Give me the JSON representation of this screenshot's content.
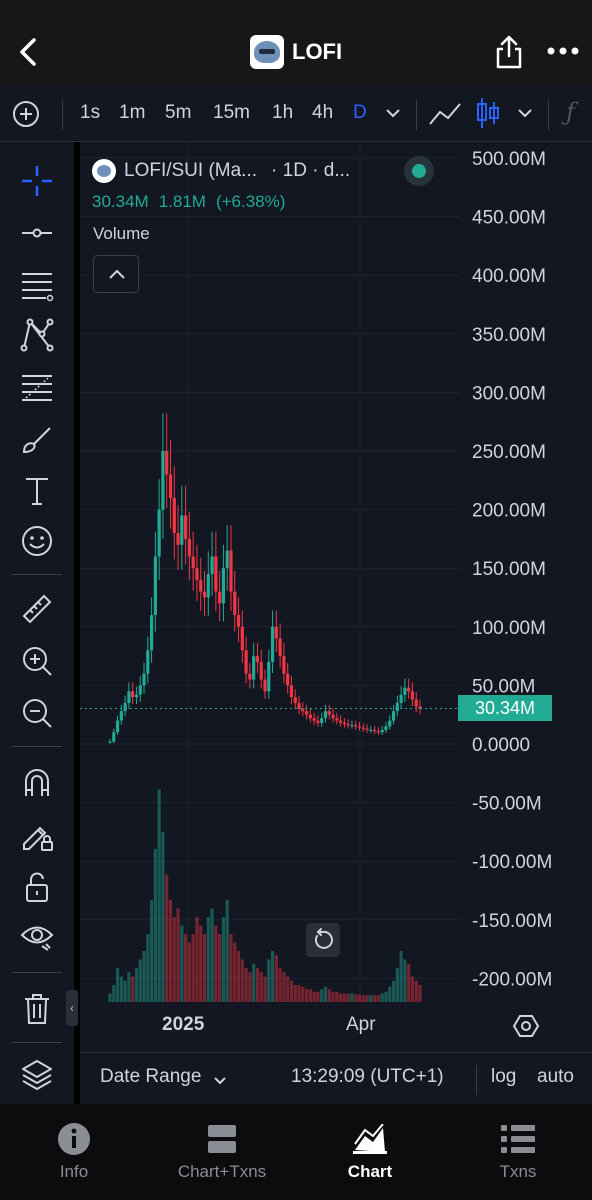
{
  "header": {
    "title": "LOFI",
    "icons": [
      "back-chevron-icon",
      "token-logo",
      "share-icon",
      "more-icon"
    ]
  },
  "toolbar": {
    "timeframes": [
      "1s",
      "1m",
      "5m",
      "15m",
      "1h",
      "4h",
      "D"
    ],
    "active_timeframe": "D",
    "icons": [
      "add-circle-icon",
      "chevron-down-icon",
      "line-chart-icon",
      "candles-icon",
      "chevron-down-icon",
      "indicators-fx-icon"
    ]
  },
  "drawing_tools": [
    "crosshair-icon",
    "horizontal-line-icon",
    "parallel-lines-icon",
    "pattern-icon",
    "fib-icon",
    "brush-icon",
    "text-icon",
    "emoji-icon",
    "ruler-icon",
    "zoom-in-icon",
    "zoom-out-icon",
    "magnet-icon",
    "lock-drawing-icon",
    "unlock-icon",
    "eye-icon",
    "trash-icon",
    "layers-icon"
  ],
  "legend": {
    "symbol": "LOFI/SUI (Ma...",
    "interval": "· 1D · d...",
    "price": "30.34M",
    "change": "1.81M",
    "change_pct": "(+6.38%)",
    "volume_label": "Volume"
  },
  "price_tag": "30.34M",
  "x_axis": {
    "labels": [
      "2025",
      "Apr"
    ]
  },
  "chart_bottom": {
    "date_range": "Date Range",
    "time": "13:29:09 (UTC+1)",
    "log": "log",
    "auto": "auto"
  },
  "tabs": [
    {
      "label": "Info",
      "icon": "info-icon",
      "active": false
    },
    {
      "label": "Chart+Txns",
      "icon": "chart-txns-icon",
      "active": false
    },
    {
      "label": "Chart",
      "icon": "chart-icon",
      "active": true
    },
    {
      "label": "Txns",
      "icon": "list-icon",
      "active": false
    }
  ],
  "colors": {
    "up": "#22ab94",
    "down": "#f23645",
    "accent": "#2962ff",
    "background": "#131722"
  },
  "chart_data": {
    "type": "candlestick",
    "y_axis_labels": [
      "500.00M",
      "450.00M",
      "400.00M",
      "350.00M",
      "300.00M",
      "250.00M",
      "200.00M",
      "150.00M",
      "100.00M",
      "50.00M",
      "0.0000",
      "-50.00M",
      "-100.00M",
      "-150.00M",
      "-200.00M"
    ],
    "ylim": [
      -200,
      500
    ],
    "unit": "M",
    "last_price": 30.34,
    "close_series": [
      2,
      10,
      20,
      28,
      35,
      45,
      40,
      42,
      50,
      60,
      80,
      110,
      160,
      200,
      250,
      230,
      210,
      180,
      170,
      195,
      175,
      160,
      150,
      140,
      130,
      125,
      145,
      160,
      130,
      120,
      150,
      165,
      130,
      110,
      100,
      80,
      60,
      55,
      75,
      70,
      55,
      45,
      70,
      100,
      90,
      75,
      60,
      50,
      40,
      35,
      30,
      28,
      25,
      22,
      20,
      18,
      22,
      28,
      25,
      22,
      20,
      18,
      17,
      16,
      16,
      15,
      14,
      13,
      12,
      12,
      11,
      10,
      12,
      15,
      20,
      28,
      35,
      42,
      48,
      45,
      38,
      32,
      30
    ],
    "volume_series": [
      10,
      20,
      40,
      30,
      25,
      35,
      30,
      40,
      50,
      60,
      80,
      120,
      180,
      250,
      200,
      150,
      120,
      100,
      110,
      90,
      80,
      70,
      80,
      100,
      90,
      80,
      100,
      110,
      90,
      80,
      100,
      120,
      80,
      70,
      60,
      50,
      40,
      35,
      45,
      40,
      35,
      30,
      50,
      60,
      55,
      40,
      35,
      30,
      25,
      20,
      20,
      18,
      15,
      15,
      12,
      12,
      15,
      18,
      15,
      12,
      12,
      10,
      10,
      10,
      10,
      9,
      9,
      8,
      8,
      8,
      8,
      8,
      10,
      12,
      18,
      25,
      40,
      60,
      50,
      45,
      30,
      25,
      20
    ]
  }
}
